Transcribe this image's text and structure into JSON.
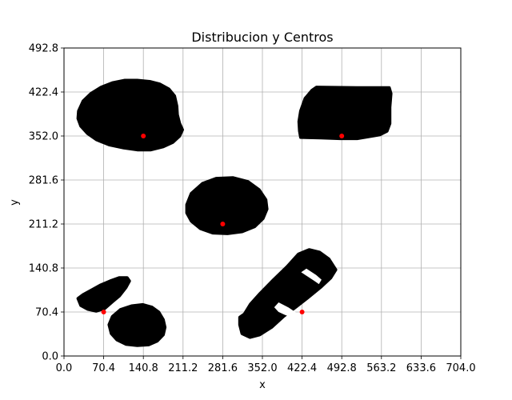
{
  "chart_data": {
    "type": "scatter",
    "title": "Distribucion y Centros",
    "xlabel": "x",
    "ylabel": "y",
    "xlim": [
      0,
      704
    ],
    "ylim": [
      0,
      492.8
    ],
    "x_ticks": [
      "0.0",
      "70.4",
      "140.8",
      "211.2",
      "281.6",
      "352.0",
      "422.4",
      "492.8",
      "563.2",
      "633.6",
      "704.0"
    ],
    "y_ticks": [
      "0.0",
      "70.4",
      "140.8",
      "211.2",
      "281.6",
      "352.0",
      "422.4",
      "492.8"
    ],
    "grid": true,
    "blob_color": "#000000",
    "center_color": "#ff0000",
    "blobs": [
      {
        "name": "blob-top-left",
        "outline": [
          [
            26,
            392
          ],
          [
            34,
            408
          ],
          [
            48,
            420
          ],
          [
            66,
            430
          ],
          [
            86,
            437
          ],
          [
            108,
            441
          ],
          [
            130,
            441
          ],
          [
            152,
            439
          ],
          [
            170,
            435
          ],
          [
            186,
            427
          ],
          [
            196,
            416
          ],
          [
            200,
            400
          ],
          [
            201,
            386
          ],
          [
            205,
            372
          ],
          [
            210,
            362
          ],
          [
            205,
            352
          ],
          [
            193,
            342
          ],
          [
            176,
            335
          ],
          [
            154,
            330
          ],
          [
            130,
            330
          ],
          [
            106,
            333
          ],
          [
            80,
            338
          ],
          [
            58,
            346
          ],
          [
            42,
            356
          ],
          [
            30,
            368
          ],
          [
            25,
            380
          ]
        ]
      },
      {
        "name": "blob-top-right",
        "outline": [
          [
            420,
            392
          ],
          [
            428,
            412
          ],
          [
            440,
            425
          ],
          [
            448,
            430
          ],
          [
            520,
            429
          ],
          [
            577,
            429
          ],
          [
            580,
            420
          ],
          [
            578,
            398
          ],
          [
            578,
            372
          ],
          [
            573,
            360
          ],
          [
            560,
            354
          ],
          [
            540,
            351
          ],
          [
            520,
            348
          ],
          [
            490,
            348
          ],
          [
            456,
            349
          ],
          [
            420,
            350
          ],
          [
            418,
            360
          ],
          [
            417,
            375
          ]
        ]
      },
      {
        "name": "blob-middle",
        "outline": [
          [
            218,
            242
          ],
          [
            226,
            260
          ],
          [
            246,
            276
          ],
          [
            270,
            284
          ],
          [
            300,
            285
          ],
          [
            326,
            279
          ],
          [
            346,
            266
          ],
          [
            358,
            250
          ],
          [
            360,
            235
          ],
          [
            353,
            220
          ],
          [
            338,
            207
          ],
          [
            316,
            199
          ],
          [
            290,
            196
          ],
          [
            264,
            197
          ],
          [
            242,
            204
          ],
          [
            226,
            216
          ],
          [
            218,
            229
          ]
        ]
      },
      {
        "name": "blob-bottom-right",
        "outline": [
          [
            320,
            67
          ],
          [
            331,
            83
          ],
          [
            348,
            100
          ],
          [
            372,
            122
          ],
          [
            396,
            143
          ],
          [
            416,
            163
          ],
          [
            435,
            170
          ],
          [
            453,
            166
          ],
          [
            470,
            155
          ],
          [
            482,
            138
          ],
          [
            473,
            125
          ],
          [
            455,
            110
          ],
          [
            432,
            93
          ],
          [
            412,
            79
          ],
          [
            390,
            64
          ],
          [
            368,
            46
          ],
          [
            347,
            34
          ],
          [
            330,
            30
          ],
          [
            316,
            36
          ],
          [
            312,
            50
          ],
          [
            312,
            62
          ]
        ]
      },
      {
        "name": "blob-bottom-left-upper",
        "outline": [
          [
            25,
            92
          ],
          [
            34,
            98
          ],
          [
            50,
            106
          ],
          [
            64,
            113
          ],
          [
            82,
            120
          ],
          [
            98,
            125
          ],
          [
            112,
            125
          ],
          [
            116,
            120
          ],
          [
            110,
            110
          ],
          [
            98,
            96
          ],
          [
            86,
            87
          ],
          [
            72,
            76
          ],
          [
            57,
            72
          ],
          [
            42,
            75
          ],
          [
            30,
            81
          ]
        ]
      },
      {
        "name": "blob-bottom-left-lower",
        "outline": [
          [
            80,
            50
          ],
          [
            86,
            63
          ],
          [
            100,
            74
          ],
          [
            120,
            80
          ],
          [
            140,
            82
          ],
          [
            156,
            78
          ],
          [
            168,
            70
          ],
          [
            176,
            58
          ],
          [
            179,
            46
          ],
          [
            176,
            34
          ],
          [
            165,
            24
          ],
          [
            150,
            18
          ],
          [
            130,
            17
          ],
          [
            110,
            19
          ],
          [
            94,
            26
          ],
          [
            84,
            36
          ]
        ]
      }
    ],
    "holes": [
      {
        "name": "hole-a",
        "outline": [
          [
            422,
            134
          ],
          [
            430,
            139
          ],
          [
            447,
            129
          ],
          [
            456,
            122
          ],
          [
            452,
            116
          ],
          [
            444,
            121
          ],
          [
            432,
            128
          ]
        ]
      },
      {
        "name": "hole-b",
        "outline": [
          [
            374,
            78
          ],
          [
            381,
            85
          ],
          [
            398,
            77
          ],
          [
            413,
            68
          ],
          [
            407,
            62
          ],
          [
            393,
            66
          ],
          [
            381,
            71
          ]
        ]
      }
    ],
    "centers": [
      {
        "x": 140.8,
        "y": 352.0
      },
      {
        "x": 492.8,
        "y": 352.0
      },
      {
        "x": 281.6,
        "y": 211.2
      },
      {
        "x": 70.4,
        "y": 70.4
      },
      {
        "x": 422.4,
        "y": 70.4
      }
    ]
  }
}
